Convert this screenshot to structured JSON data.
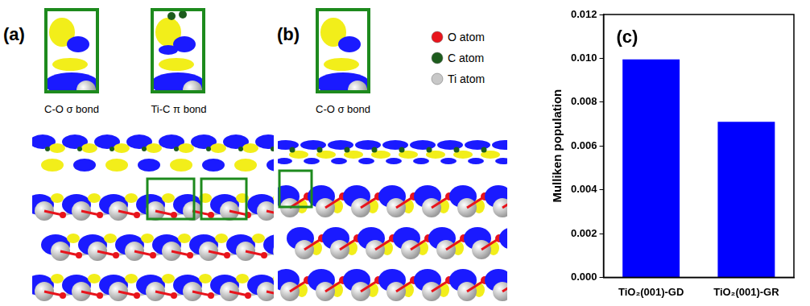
{
  "panels": [
    {
      "label": "(a)",
      "insets": [
        "C-O σ bond",
        "Ti-C π bond"
      ]
    },
    {
      "label": "(b)",
      "insets": [
        "C-O σ bond"
      ]
    }
  ],
  "atom_legend": [
    {
      "label": "O atom",
      "color": "#e8141c"
    },
    {
      "label": "C atom",
      "color": "#1d5c1d"
    },
    {
      "label": "Ti atom",
      "color": "#c8c8c8"
    }
  ],
  "chart_data": {
    "type": "bar",
    "title": "(c)",
    "categories": [
      "TiO₂(001)-GD",
      "TiO₂(001)-GR"
    ],
    "values": [
      0.00995,
      0.0071
    ],
    "color": "#0000ff",
    "ylim": [
      0,
      0.012
    ],
    "yticks": [
      {
        "value": 0,
        "label": "0.000"
      },
      {
        "value": 0.002,
        "label": "0.002"
      },
      {
        "value": 0.004,
        "label": "0.004"
      },
      {
        "value": 0.006,
        "label": "0.006"
      },
      {
        "value": 0.008,
        "label": "0.008"
      },
      {
        "value": 0.01,
        "label": "0.010"
      },
      {
        "value": 0.012,
        "label": "0.012"
      }
    ],
    "y_label": "Mulliken population",
    "grid": false
  }
}
